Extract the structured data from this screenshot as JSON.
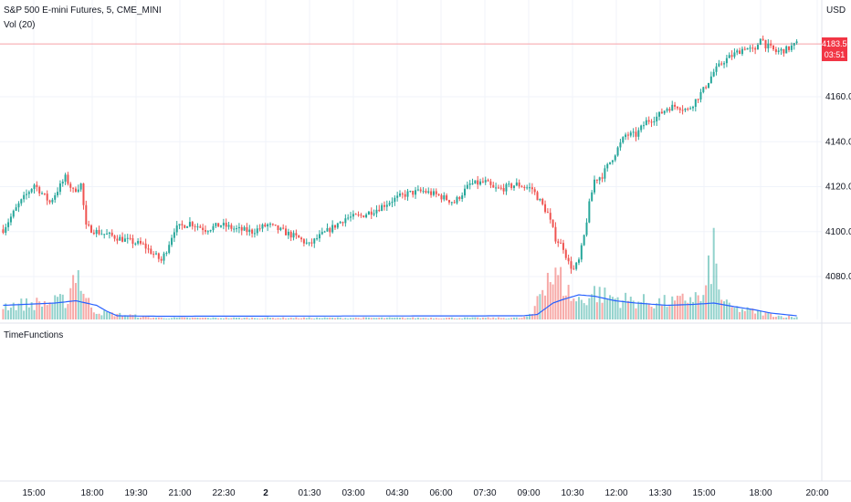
{
  "symbol_title": "S&P 500 E-mini Futures, 5, CME_MINI",
  "volume_label": "Vol (20)",
  "pane2_title": "TimeFunctions",
  "currency": "USD",
  "last_price": "4183.50",
  "countdown": "03:51",
  "colors": {
    "up": "#26a69a",
    "down": "#ef5350",
    "ma": "#2962ff",
    "price_line": "#f23645"
  },
  "chart_data": {
    "type": "candlestick",
    "title": "S&P 500 E-mini Futures, 5, CME_MINI",
    "ylabel": "USD",
    "ylim": [
      4066,
      4196
    ],
    "y_ticks": [
      4080,
      4100,
      4120,
      4140,
      4160
    ],
    "x_ticks": [
      "15:00",
      "18:00",
      "19:30",
      "21:00",
      "22:30",
      "2",
      "01:30",
      "03:00",
      "04:30",
      "06:00",
      "07:30",
      "09:00",
      "10:30",
      "12:00",
      "13:30",
      "15:00",
      "18:00",
      "20:00"
    ],
    "grid": true,
    "last_price": 4183.5,
    "price_path": [
      [
        0,
        4101
      ],
      [
        6,
        4112
      ],
      [
        12,
        4121
      ],
      [
        18,
        4113
      ],
      [
        24,
        4124
      ],
      [
        27,
        4118
      ],
      [
        30,
        4121
      ],
      [
        32,
        4102
      ],
      [
        36,
        4100
      ],
      [
        42,
        4098
      ],
      [
        48,
        4096
      ],
      [
        54,
        4094
      ],
      [
        58,
        4090
      ],
      [
        61,
        4087
      ],
      [
        63,
        4092
      ],
      [
        66,
        4101
      ],
      [
        72,
        4104
      ],
      [
        78,
        4101
      ],
      [
        84,
        4103
      ],
      [
        90,
        4101
      ],
      [
        96,
        4100
      ],
      [
        102,
        4103
      ],
      [
        108,
        4100
      ],
      [
        114,
        4097
      ],
      [
        118,
        4094
      ],
      [
        121,
        4097
      ],
      [
        126,
        4101
      ],
      [
        132,
        4106
      ],
      [
        138,
        4107
      ],
      [
        144,
        4110
      ],
      [
        150,
        4114
      ],
      [
        156,
        4117
      ],
      [
        162,
        4118
      ],
      [
        168,
        4116
      ],
      [
        174,
        4113
      ],
      [
        180,
        4121
      ],
      [
        186,
        4122
      ],
      [
        189,
        4119
      ],
      [
        192,
        4119
      ],
      [
        198,
        4121
      ],
      [
        204,
        4119
      ],
      [
        210,
        4108
      ],
      [
        213,
        4097
      ],
      [
        216,
        4093
      ],
      [
        218,
        4086
      ],
      [
        220,
        4083
      ],
      [
        222,
        4087
      ],
      [
        224,
        4098
      ],
      [
        226,
        4112
      ],
      [
        228,
        4123
      ],
      [
        231,
        4125
      ],
      [
        234,
        4131
      ],
      [
        237,
        4137
      ],
      [
        240,
        4143
      ],
      [
        244,
        4143
      ],
      [
        248,
        4149
      ],
      [
        252,
        4151
      ],
      [
        256,
        4155
      ],
      [
        260,
        4156
      ],
      [
        264,
        4154
      ],
      [
        268,
        4160
      ],
      [
        270,
        4163
      ],
      [
        274,
        4171
      ],
      [
        278,
        4176
      ],
      [
        282,
        4179
      ],
      [
        286,
        4182
      ],
      [
        290,
        4180
      ],
      [
        292,
        4187
      ],
      [
        294,
        4183
      ],
      [
        298,
        4180
      ],
      [
        302,
        4181
      ],
      [
        306,
        4183.5
      ]
    ],
    "volume_path": [
      [
        0,
        0.18
      ],
      [
        10,
        0.2
      ],
      [
        20,
        0.22
      ],
      [
        25,
        0.25
      ],
      [
        28,
        0.7
      ],
      [
        32,
        0.25
      ],
      [
        36,
        0.1
      ],
      [
        42,
        0.07
      ],
      [
        50,
        0.05
      ],
      [
        55,
        0.03
      ],
      [
        60,
        0.02
      ],
      [
        200,
        0.02
      ],
      [
        204,
        0.06
      ],
      [
        206,
        0.3
      ],
      [
        208,
        0.45
      ],
      [
        210,
        0.6
      ],
      [
        212,
        0.5
      ],
      [
        214,
        0.55
      ],
      [
        216,
        0.45
      ],
      [
        218,
        0.35
      ],
      [
        220,
        0.25
      ],
      [
        224,
        0.25
      ],
      [
        228,
        0.35
      ],
      [
        232,
        0.3
      ],
      [
        240,
        0.25
      ],
      [
        250,
        0.22
      ],
      [
        260,
        0.22
      ],
      [
        266,
        0.3
      ],
      [
        270,
        0.25
      ],
      [
        274,
        0.9
      ],
      [
        276,
        0.35
      ],
      [
        280,
        0.15
      ],
      [
        290,
        0.1
      ],
      [
        300,
        0.04
      ],
      [
        306,
        0.03
      ]
    ],
    "volume_ma_path": [
      [
        0,
        0.25
      ],
      [
        20,
        0.3
      ],
      [
        28,
        0.35
      ],
      [
        36,
        0.25
      ],
      [
        40,
        0.12
      ],
      [
        44,
        0.02
      ],
      [
        60,
        0.01
      ],
      [
        200,
        0.02
      ],
      [
        206,
        0.05
      ],
      [
        212,
        0.3
      ],
      [
        216,
        0.38
      ],
      [
        222,
        0.48
      ],
      [
        228,
        0.45
      ],
      [
        236,
        0.35
      ],
      [
        244,
        0.3
      ],
      [
        256,
        0.25
      ],
      [
        266,
        0.27
      ],
      [
        274,
        0.3
      ],
      [
        282,
        0.22
      ],
      [
        290,
        0.15
      ],
      [
        296,
        0.08
      ],
      [
        306,
        0.02
      ]
    ]
  }
}
